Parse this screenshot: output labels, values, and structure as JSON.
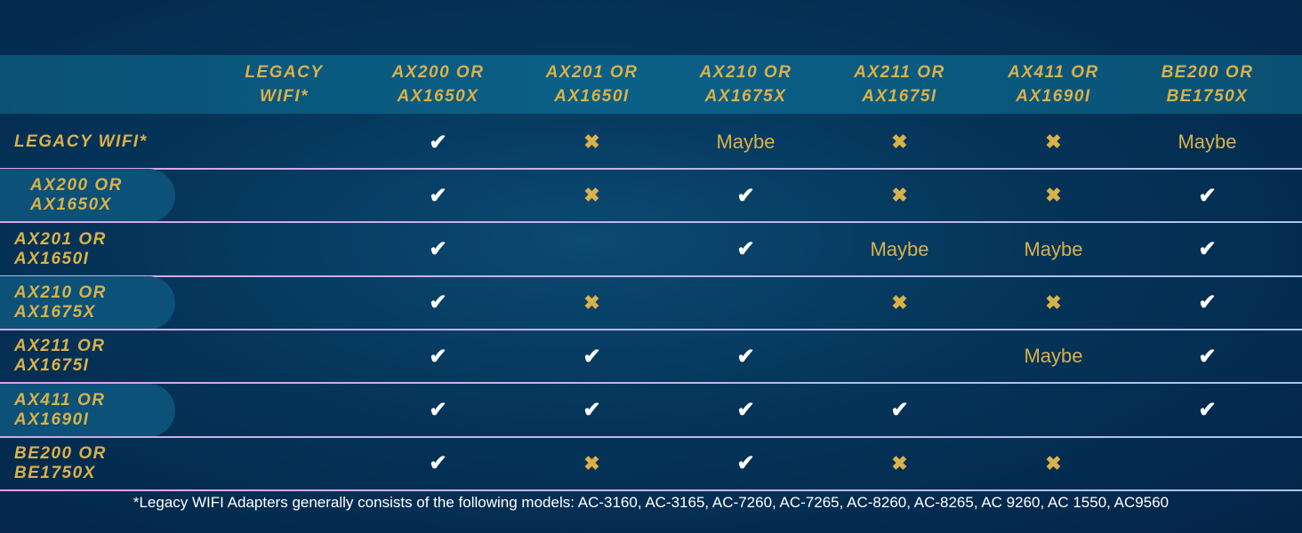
{
  "colors": {
    "gold": "#d9b14a",
    "check": "#ffffff",
    "divider": "#d7a6e6"
  },
  "columns": [
    "Legacy WIFI*",
    "AX200 or AX1650x",
    "AX201 or AX1650i",
    "AX210 or AX1675x",
    "AX211 or AX1675i",
    "AX411 or AX1690i",
    "BE200 or BE1750x"
  ],
  "column_lines": [
    [
      "Legacy",
      "WIFI*"
    ],
    [
      "AX200 or",
      "AX1650x"
    ],
    [
      "AX201 or",
      "AX1650i"
    ],
    [
      "AX210 or",
      "AX1675x"
    ],
    [
      "AX211 or",
      "AX1675i"
    ],
    [
      "AX411 or",
      "AX1690i"
    ],
    [
      "BE200 or",
      "BE1750x"
    ]
  ],
  "rows": [
    {
      "label": [
        "Legacy WIFI*"
      ],
      "cells": [
        "",
        "check",
        "cross",
        "Maybe",
        "cross",
        "cross",
        "Maybe"
      ]
    },
    {
      "label": [
        "AX200 or",
        "AX1650x"
      ],
      "cells": [
        "",
        "check",
        "cross",
        "check",
        "cross",
        "cross",
        "check"
      ]
    },
    {
      "label": [
        "AX201 or",
        "AX1650i"
      ],
      "cells": [
        "",
        "check",
        "",
        "check",
        "Maybe",
        "Maybe",
        "check"
      ]
    },
    {
      "label": [
        "AX210 or",
        "AX1675x"
      ],
      "cells": [
        "",
        "check",
        "cross",
        "",
        "cross",
        "cross",
        "check"
      ]
    },
    {
      "label": [
        "AX211 or",
        "AX1675i"
      ],
      "cells": [
        "",
        "check",
        "check",
        "check",
        "",
        "Maybe",
        "check"
      ]
    },
    {
      "label": [
        "AX411 or",
        "AX1690i"
      ],
      "cells": [
        "",
        "check",
        "check",
        "check",
        "check",
        "",
        "check"
      ]
    },
    {
      "label": [
        "BE200 or",
        "BE1750x"
      ],
      "cells": [
        "",
        "check",
        "cross",
        "check",
        "cross",
        "cross",
        ""
      ]
    }
  ],
  "footnote": "*Legacy WIFI Adapters generally consists of the following models: AC-3160, AC-3165, AC-7260, AC-7265, AC-8260, AC-8265, AC 9260, AC 1550, AC9560"
}
